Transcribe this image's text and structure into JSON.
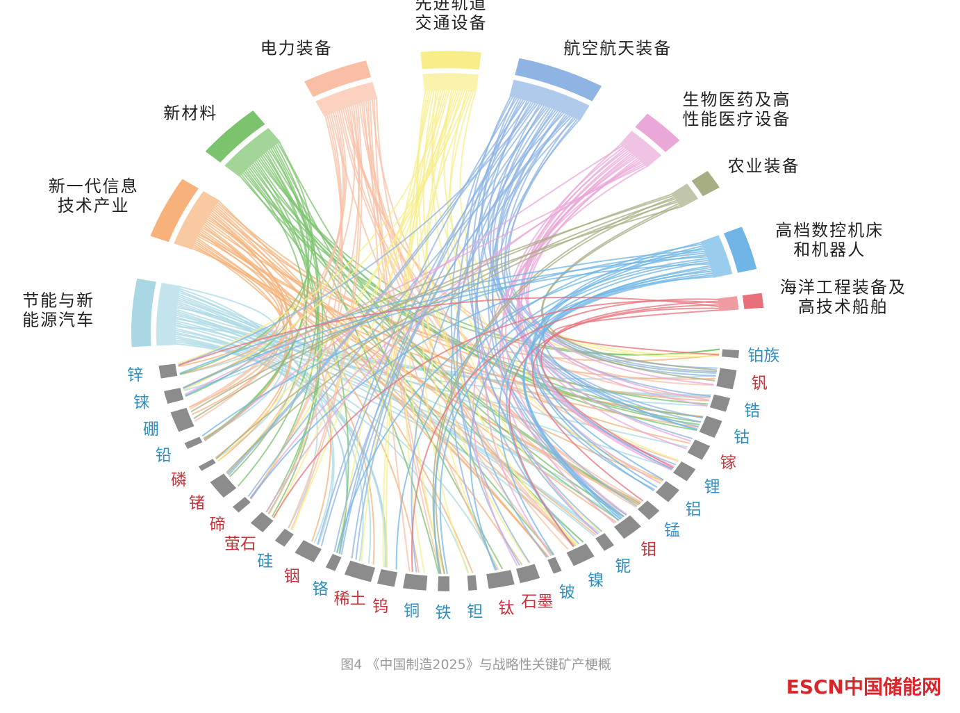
{
  "industries": [
    {
      "label": [
        "节能与新",
        "能源汽车"
      ],
      "color": "#a9d8e4"
    },
    {
      "label": [
        "新一代信息",
        "技术产业"
      ],
      "color": "#f6b27a"
    },
    {
      "label": [
        "新材料"
      ],
      "color": "#7cc36e"
    },
    {
      "label": [
        "电力装备"
      ],
      "color": "#f8bfa4"
    },
    {
      "label": [
        "先进轨道",
        "交通设备"
      ],
      "color": "#f7ee8a"
    },
    {
      "label": [
        "航空航天装备"
      ],
      "color": "#8eb4e3"
    },
    {
      "label": [
        "生物医药及高",
        "性能医疗设备"
      ],
      "color": "#eaa8d8"
    },
    {
      "label": [
        "农业装备"
      ],
      "color": "#a8ae84"
    },
    {
      "label": [
        "高档数控机床",
        "和机器人"
      ],
      "color": "#6fb6e6"
    },
    {
      "label": [
        "海洋工程装备及",
        "高技术船舶"
      ],
      "color": "#e8707a"
    }
  ],
  "minerals": [
    {
      "label": "锌",
      "color": "#2f8fc0"
    },
    {
      "label": "铼",
      "color": "#2f8fc0"
    },
    {
      "label": "硼",
      "color": "#2f8fc0"
    },
    {
      "label": "铅",
      "color": "#2f8fc0"
    },
    {
      "label": "磷",
      "color": "#c8323a"
    },
    {
      "label": "锗",
      "color": "#c8323a"
    },
    {
      "label": "碲",
      "color": "#c8323a"
    },
    {
      "label": "萤石",
      "color": "#c8323a"
    },
    {
      "label": "硅",
      "color": "#2f8fc0"
    },
    {
      "label": "铟",
      "color": "#c8323a"
    },
    {
      "label": "铬",
      "color": "#2f8fc0"
    },
    {
      "label": "稀土",
      "color": "#c8323a"
    },
    {
      "label": "钨",
      "color": "#c8323a"
    },
    {
      "label": "铜",
      "color": "#2f8fc0"
    },
    {
      "label": "铁",
      "color": "#2f8fc0"
    },
    {
      "label": "钽",
      "color": "#2f8fc0"
    },
    {
      "label": "钛",
      "color": "#c8323a"
    },
    {
      "label": "石墨",
      "color": "#c8323a"
    },
    {
      "label": "铍",
      "color": "#2f8fc0"
    },
    {
      "label": "镍",
      "color": "#2f8fc0"
    },
    {
      "label": "铌",
      "color": "#2f8fc0"
    },
    {
      "label": "钼",
      "color": "#c8323a"
    },
    {
      "label": "锰",
      "color": "#2f8fc0"
    },
    {
      "label": "铝",
      "color": "#2f8fc0"
    },
    {
      "label": "锂",
      "color": "#2f8fc0"
    },
    {
      "label": "镓",
      "color": "#c8323a"
    },
    {
      "label": "钴",
      "color": "#2f8fc0"
    },
    {
      "label": "锆",
      "color": "#2f8fc0"
    },
    {
      "label": "钒",
      "color": "#c8323a"
    },
    {
      "label": "铂族",
      "color": "#2f8fc0"
    }
  ],
  "caption": "图4 《中国制造2025》与战略性关键矿产梗概",
  "watermark": "ESCN中国储能网"
}
